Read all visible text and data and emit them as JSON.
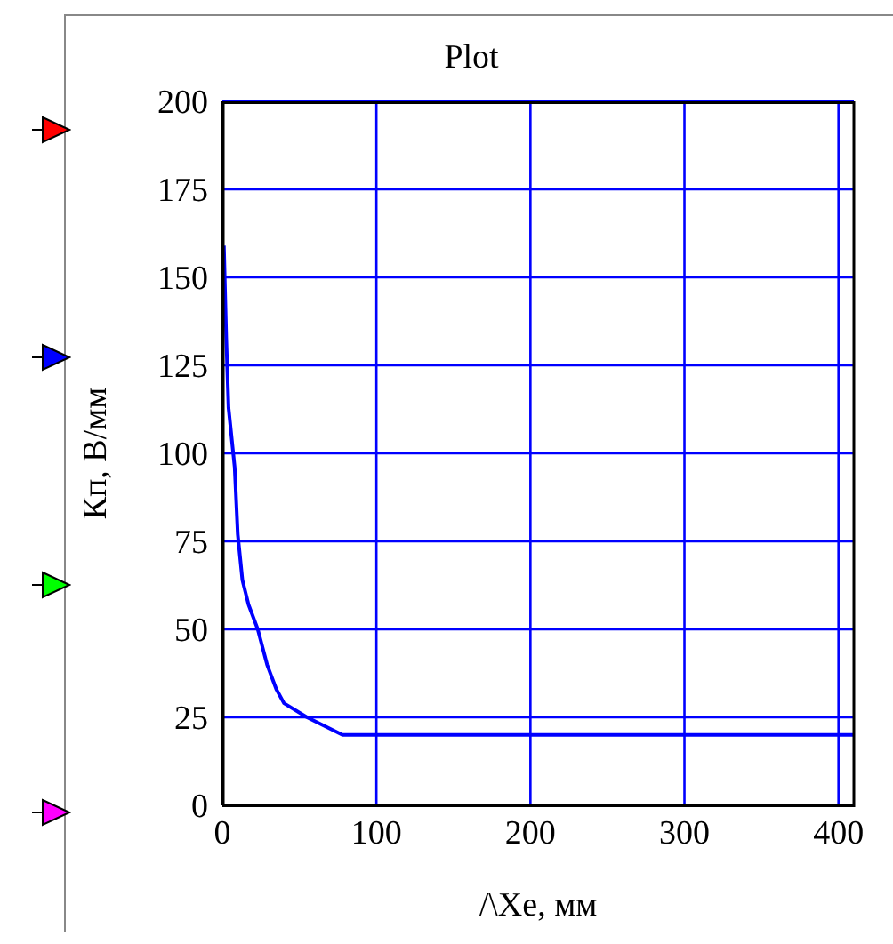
{
  "chart_data": {
    "type": "line",
    "title": "Plot",
    "xlabel": "/\\Xe, мм",
    "ylabel": "Кп, В/мм",
    "x": [
      1,
      2.5,
      4,
      8,
      10,
      13,
      17,
      23,
      29,
      35,
      40,
      55,
      78,
      410
    ],
    "series": [
      {
        "color": "#0000ff",
        "values": [
          159,
          133,
          113,
          96,
          77,
          64,
          57,
          50,
          40,
          33,
          29,
          25,
          20,
          20
        ]
      }
    ],
    "xlim": [
      0,
      410
    ],
    "xticks": [
      0,
      100,
      200,
      300,
      400
    ],
    "ylim": [
      0,
      200
    ],
    "yticks": [
      0,
      25,
      50,
      75,
      100,
      125,
      150,
      175,
      200
    ],
    "grid": true,
    "marker": "none",
    "line_style": "solid"
  }
}
